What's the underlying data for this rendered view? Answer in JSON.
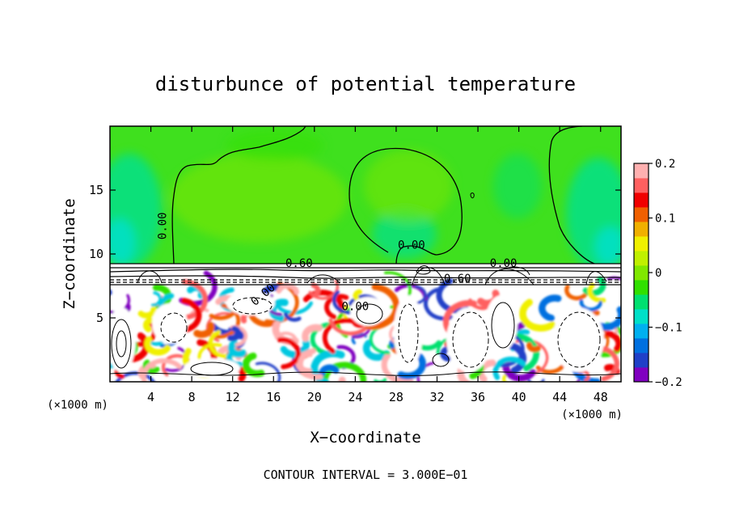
{
  "chart_data": {
    "type": "heatmap",
    "title": "disturbunce of potential temperature",
    "xlabel": "X−coordinate",
    "ylabel": "Z−coordinate",
    "x_unit_left": "(×1000 m)",
    "x_unit_right": "(×1000 m)",
    "xlim": [
      0,
      50
    ],
    "ylim": [
      0,
      20
    ],
    "x_ticks": [
      4,
      8,
      12,
      16,
      20,
      24,
      28,
      32,
      36,
      40,
      44,
      48
    ],
    "x_tick_labels": [
      "4",
      "8",
      "12",
      "16",
      "20",
      "24",
      "28",
      "32",
      "36",
      "40",
      "44",
      "48"
    ],
    "y_ticks": [
      5,
      10,
      15
    ],
    "y_tick_labels": [
      "5",
      "10",
      "15"
    ],
    "colorbar": {
      "range": [
        -0.2,
        0.2
      ],
      "ticks": [
        0.2,
        0.1,
        0,
        -0.1,
        -0.2
      ],
      "tick_labels": [
        "0.2",
        "0.1",
        "0",
        "−0.1",
        "−0.2"
      ],
      "colors": [
        "#8000c0",
        "#2040c8",
        "#0070e0",
        "#00b0f0",
        "#00e0c8",
        "#00e070",
        "#30e000",
        "#80e800",
        "#c0f000",
        "#f0f000",
        "#f0b000",
        "#f06000",
        "#f00000",
        "#ff6060",
        "#ffb0b0"
      ]
    },
    "contour_labels": [
      {
        "text": "0.00",
        "x": 5.5,
        "z": 12.2,
        "rotate": -90
      },
      {
        "text": "0.60",
        "x": 18.5,
        "z": 9.0,
        "rotate": 0
      },
      {
        "text": "0.00",
        "x": 29.5,
        "z": 10.4,
        "rotate": 0
      },
      {
        "text": "0.00",
        "x": 38.5,
        "z": 9.0,
        "rotate": 0
      },
      {
        "text": "0.60",
        "x": 34.0,
        "z": 7.8,
        "rotate": 0
      },
      {
        "text": "0.00",
        "x": 15.2,
        "z": 6.6,
        "rotate": -40
      },
      {
        "text": "0.00",
        "x": 24.0,
        "z": 5.6,
        "rotate": 0
      }
    ],
    "footer": "CONTOUR INTERVAL = 3.000E−01"
  }
}
